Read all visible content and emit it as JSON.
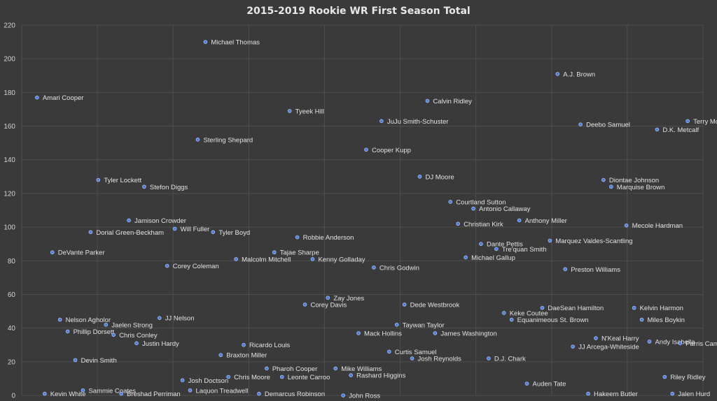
{
  "chart_data": {
    "type": "scatter",
    "title": "2015-2019 Rookie WR First Season Total",
    "xlabel": "",
    "ylabel": "",
    "x_range": [
      0,
      100
    ],
    "ylim": [
      0,
      220
    ],
    "y_ticks": [
      0,
      20,
      40,
      60,
      80,
      100,
      120,
      140,
      160,
      180,
      200,
      220
    ],
    "grid": "vertical and horizontal",
    "legend": "none",
    "colors": {
      "background": "#3a3a3a",
      "grid": "#4e4e4e",
      "point": "#4f7ddd",
      "text": "#e2e2e2"
    },
    "points": [
      {
        "label": "Amari Cooper",
        "x": 1,
        "y": 177
      },
      {
        "label": "Michael Thomas",
        "x": 23,
        "y": 210
      },
      {
        "label": "Tyeek Hill",
        "x": 34,
        "y": 169
      },
      {
        "label": "Calvin Ridley",
        "x": 52,
        "y": 175
      },
      {
        "label": "A.J. Brown",
        "x": 69,
        "y": 191
      },
      {
        "label": "JuJu Smith-Schuster",
        "x": 46,
        "y": 163
      },
      {
        "label": "Deebo Samuel",
        "x": 72,
        "y": 161
      },
      {
        "label": "Terry McLaurin",
        "x": 86,
        "y": 163
      },
      {
        "label": "D.K. Metcalf",
        "x": 82,
        "y": 158
      },
      {
        "label": "Sterling Shepard",
        "x": 22,
        "y": 152
      },
      {
        "label": "Cooper Kupp",
        "x": 44,
        "y": 146
      },
      {
        "label": "Tyler Lockett",
        "x": 9,
        "y": 128
      },
      {
        "label": "Stefon Diggs",
        "x": 15,
        "y": 124
      },
      {
        "label": "DJ Moore",
        "x": 51,
        "y": 130
      },
      {
        "label": "Diontae Johnson",
        "x": 75,
        "y": 128
      },
      {
        "label": "Marquise Brown",
        "x": 76,
        "y": 124
      },
      {
        "label": "Courtland Sutton",
        "x": 55,
        "y": 115
      },
      {
        "label": "Antonio Callaway",
        "x": 58,
        "y": 111
      },
      {
        "label": "Jamison Crowder",
        "x": 13,
        "y": 104
      },
      {
        "label": "Will Fuller",
        "x": 19,
        "y": 99
      },
      {
        "label": "Tyler Boyd",
        "x": 24,
        "y": 97
      },
      {
        "label": "Dorial Green-Beckham",
        "x": 8,
        "y": 97
      },
      {
        "label": "Christian Kirk",
        "x": 56,
        "y": 102
      },
      {
        "label": "Anthony Miller",
        "x": 64,
        "y": 104
      },
      {
        "label": "Mecole Hardman",
        "x": 78,
        "y": 101
      },
      {
        "label": "Robbie Anderson",
        "x": 35,
        "y": 94
      },
      {
        "label": "Marquez Valdes-Scantling",
        "x": 68,
        "y": 92
      },
      {
        "label": "Dante Pettis",
        "x": 59,
        "y": 90
      },
      {
        "label": "Tre'quan Smith",
        "x": 61,
        "y": 87
      },
      {
        "label": "DeVante Parker",
        "x": 3,
        "y": 85
      },
      {
        "label": "Tajae Sharpe",
        "x": 32,
        "y": 85
      },
      {
        "label": "Malcolm Mitchell",
        "x": 27,
        "y": 81
      },
      {
        "label": "Kenny Golladay",
        "x": 37,
        "y": 81
      },
      {
        "label": "Michael Gallup",
        "x": 57,
        "y": 82
      },
      {
        "label": "Corey Coleman",
        "x": 18,
        "y": 77
      },
      {
        "label": "Chris Godwin",
        "x": 45,
        "y": 76
      },
      {
        "label": "Preston Williams",
        "x": 70,
        "y": 75
      },
      {
        "label": "Zay Jones",
        "x": 39,
        "y": 58
      },
      {
        "label": "Corey Davis",
        "x": 36,
        "y": 54
      },
      {
        "label": "Dede Westbrook",
        "x": 49,
        "y": 54
      },
      {
        "label": "DaeSean Hamilton",
        "x": 67,
        "y": 52
      },
      {
        "label": "Kelvin Harmon",
        "x": 79,
        "y": 52
      },
      {
        "label": "Keke Coutee",
        "x": 62,
        "y": 49
      },
      {
        "label": "JJ Nelson",
        "x": 17,
        "y": 46
      },
      {
        "label": "Nelson Agholor",
        "x": 4,
        "y": 45
      },
      {
        "label": "Equanimeous St. Brown",
        "x": 63,
        "y": 45
      },
      {
        "label": "Miles Boykin",
        "x": 80,
        "y": 45
      },
      {
        "label": "Jaelen Strong",
        "x": 10,
        "y": 42
      },
      {
        "label": "Taywan Taylor",
        "x": 48,
        "y": 42
      },
      {
        "label": "Phillip Dorsett",
        "x": 5,
        "y": 38
      },
      {
        "label": "Mack Hollins",
        "x": 43,
        "y": 37
      },
      {
        "label": "James Washington",
        "x": 53,
        "y": 37
      },
      {
        "label": "Chris Conley",
        "x": 11,
        "y": 36
      },
      {
        "label": "N'Keal Harry",
        "x": 74,
        "y": 34
      },
      {
        "label": "Andy Isabella",
        "x": 81,
        "y": 32
      },
      {
        "label": "Parris Campbell",
        "x": 85,
        "y": 31
      },
      {
        "label": "Justin Hardy",
        "x": 14,
        "y": 31
      },
      {
        "label": "Ricardo Louis",
        "x": 28,
        "y": 30
      },
      {
        "label": "JJ Arcega-Whiteside",
        "x": 71,
        "y": 29
      },
      {
        "label": "Curtis Samuel",
        "x": 47,
        "y": 26
      },
      {
        "label": "Braxton Miller",
        "x": 25,
        "y": 24
      },
      {
        "label": "Josh Reynolds",
        "x": 50,
        "y": 22
      },
      {
        "label": "D.J. Chark",
        "x": 60,
        "y": 22
      },
      {
        "label": "Devin Smith",
        "x": 6,
        "y": 21
      },
      {
        "label": "Pharoh Cooper",
        "x": 31,
        "y": 16
      },
      {
        "label": "Mike Williams",
        "x": 40,
        "y": 16
      },
      {
        "label": "Chris Moore",
        "x": 26,
        "y": 11
      },
      {
        "label": "Leonte Carroo",
        "x": 33,
        "y": 11
      },
      {
        "label": "Rashard Higgins",
        "x": 42,
        "y": 12
      },
      {
        "label": "Riley Ridley",
        "x": 83,
        "y": 11
      },
      {
        "label": "Josh Doctson",
        "x": 20,
        "y": 9
      },
      {
        "label": "Auden Tate",
        "x": 65,
        "y": 7
      },
      {
        "label": "Laquon Treadwell",
        "x": 21,
        "y": 3
      },
      {
        "label": "Sammie Coates",
        "x": 7,
        "y": 3
      },
      {
        "label": "Kevin White",
        "x": 2,
        "y": 1
      },
      {
        "label": "Breshad Perriman",
        "x": 12,
        "y": 1
      },
      {
        "label": "Demarcus Robinson",
        "x": 30,
        "y": 1
      },
      {
        "label": "John Ross",
        "x": 41,
        "y": 0
      },
      {
        "label": "Hakeem Butler",
        "x": 73,
        "y": 1
      },
      {
        "label": "Jalen Hurd",
        "x": 84,
        "y": 1
      }
    ]
  }
}
